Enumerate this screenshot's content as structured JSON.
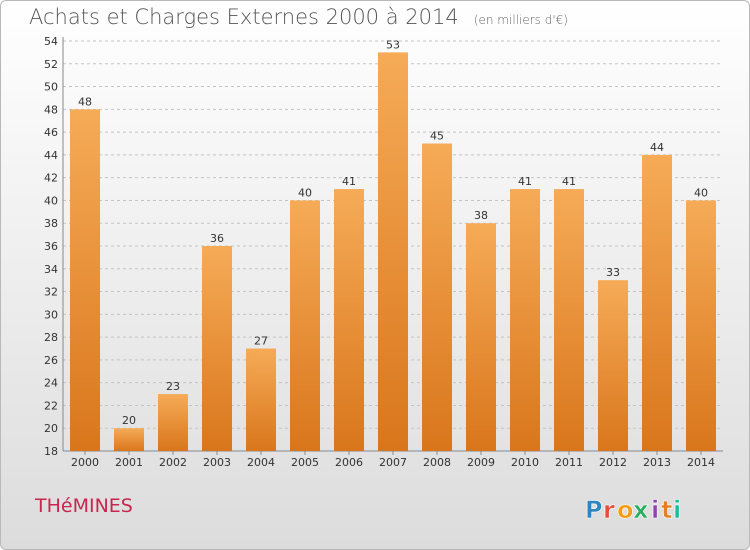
{
  "title": "Achats et Charges Externes 2000 à 2014",
  "subtitle": "(en milliers d'€)",
  "commune": "THéMINES",
  "logo": {
    "letters": [
      "P",
      "r",
      "o",
      "x",
      "i",
      "t",
      "i"
    ],
    "colors": [
      "#2e86c1",
      "#e74c3c",
      "#f39c12",
      "#27ae60",
      "#8e44ad",
      "#e67e22",
      "#1abc9c"
    ]
  },
  "colors": {
    "bar_light": "#f6ab57",
    "bar_dark": "#d9761c",
    "grid": "#c4c4c4",
    "commune": "#c8254f"
  },
  "chart_data": {
    "type": "bar",
    "categories": [
      "2000",
      "2001",
      "2002",
      "2003",
      "2004",
      "2005",
      "2006",
      "2007",
      "2008",
      "2009",
      "2010",
      "2011",
      "2012",
      "2013",
      "2014"
    ],
    "values": [
      48,
      20,
      23,
      36,
      27,
      40,
      41,
      53,
      45,
      38,
      41,
      41,
      33,
      44,
      40
    ],
    "title": "Achats et Charges Externes 2000 à 2014",
    "subtitle": "(en milliers d'€)",
    "ylim": [
      18,
      54
    ],
    "yticks": [
      18,
      20,
      22,
      24,
      26,
      28,
      30,
      32,
      34,
      36,
      38,
      40,
      42,
      44,
      46,
      48,
      50,
      52,
      54
    ],
    "grid": true,
    "data_labels": true
  }
}
